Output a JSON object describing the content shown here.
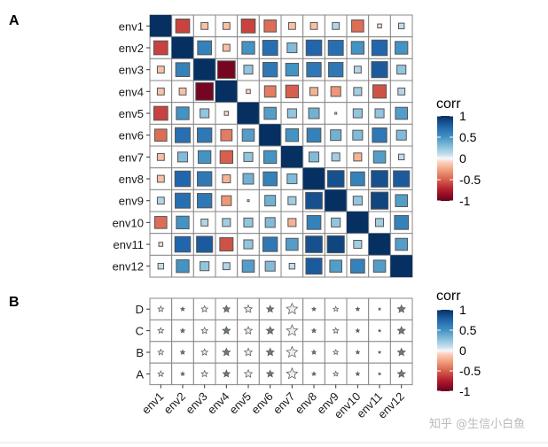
{
  "watermark": "知乎 @生信小白鱼",
  "chart_data": [
    {
      "type": "heatmap",
      "panel_label": "A",
      "variables": [
        "env1",
        "env2",
        "env3",
        "env4",
        "env5",
        "env6",
        "env7",
        "env8",
        "env9",
        "env10",
        "env11",
        "env12"
      ],
      "values": [
        [
          1,
          -0.6,
          -0.15,
          -0.15,
          -0.6,
          -0.45,
          -0.15,
          -0.15,
          0.15,
          -0.45,
          -0.05,
          0.1
        ],
        [
          -0.6,
          1,
          0.6,
          -0.15,
          0.5,
          0.7,
          0.3,
          0.75,
          0.7,
          0.5,
          0.75,
          0.5
        ],
        [
          -0.15,
          0.6,
          1,
          -0.95,
          0.25,
          0.65,
          0.5,
          0.65,
          0.65,
          0.15,
          0.8,
          0.25
        ],
        [
          -0.15,
          -0.15,
          -0.95,
          1,
          -0.05,
          -0.4,
          -0.5,
          -0.2,
          -0.3,
          0.2,
          -0.55,
          0.15
        ],
        [
          -0.6,
          0.5,
          0.25,
          -0.05,
          1,
          0.45,
          0.25,
          0.35,
          0.01,
          0.25,
          0.25,
          0.45
        ],
        [
          -0.45,
          0.7,
          0.65,
          -0.4,
          0.45,
          1,
          0.5,
          0.6,
          0.35,
          0.3,
          0.65,
          0.3
        ],
        [
          -0.15,
          0.3,
          0.5,
          -0.5,
          0.25,
          0.5,
          1,
          0.3,
          0.2,
          -0.2,
          0.45,
          0.1
        ],
        [
          -0.15,
          0.75,
          0.65,
          -0.2,
          0.35,
          0.6,
          0.3,
          1,
          0.85,
          0.6,
          0.85,
          0.8
        ],
        [
          0.15,
          0.7,
          0.65,
          -0.3,
          0.01,
          0.35,
          0.2,
          0.85,
          1,
          0.25,
          0.9,
          0.45
        ],
        [
          -0.45,
          0.5,
          0.15,
          0.2,
          0.25,
          0.3,
          -0.2,
          0.6,
          0.25,
          1,
          0.2,
          0.6
        ],
        [
          -0.05,
          0.75,
          0.8,
          -0.55,
          0.25,
          0.65,
          0.45,
          0.85,
          0.9,
          0.2,
          1,
          0.45
        ],
        [
          0.1,
          0.5,
          0.25,
          0.15,
          0.45,
          0.3,
          0.1,
          0.8,
          0.45,
          0.6,
          0.45,
          1
        ]
      ],
      "marker": "square",
      "legend": {
        "title": "corr",
        "ticks": [
          "1",
          "0.5",
          "0",
          "-0.5",
          "-1"
        ],
        "range": [
          -1,
          1
        ],
        "position": "right"
      },
      "colors": {
        "neg": "#a50f26",
        "mid": "#f7f7f7",
        "pos": "#053061"
      }
    },
    {
      "type": "heatmap",
      "panel_label": "B",
      "rows": [
        "D",
        "C",
        "B",
        "A"
      ],
      "columns": [
        "env1",
        "env2",
        "env3",
        "env4",
        "env5",
        "env6",
        "env7",
        "env8",
        "env9",
        "env10",
        "env11",
        "env12"
      ],
      "marker": "star",
      "star_sizes": [
        [
          0.3,
          0.15,
          0.35,
          0.4,
          0.45,
          0.4,
          0.7,
          0.15,
          0.25,
          0.15,
          0.05,
          0.45
        ],
        [
          0.3,
          0.2,
          0.35,
          0.45,
          0.45,
          0.45,
          0.7,
          0.2,
          0.3,
          0.15,
          0.05,
          0.45
        ],
        [
          0.3,
          0.2,
          0.35,
          0.45,
          0.45,
          0.45,
          0.7,
          0.2,
          0.25,
          0.15,
          0.05,
          0.45
        ],
        [
          0.3,
          0.15,
          0.35,
          0.4,
          0.45,
          0.4,
          0.7,
          0.15,
          0.25,
          0.15,
          0.05,
          0.45
        ]
      ],
      "star_filled": [
        false,
        true,
        false,
        true,
        false,
        true,
        false,
        true,
        false,
        true,
        true,
        true
      ],
      "legend": {
        "title": "corr",
        "ticks": [
          "1",
          "0.5",
          "0",
          "-0.5",
          "-1"
        ],
        "range": [
          -1,
          1
        ],
        "position": "right"
      }
    }
  ]
}
